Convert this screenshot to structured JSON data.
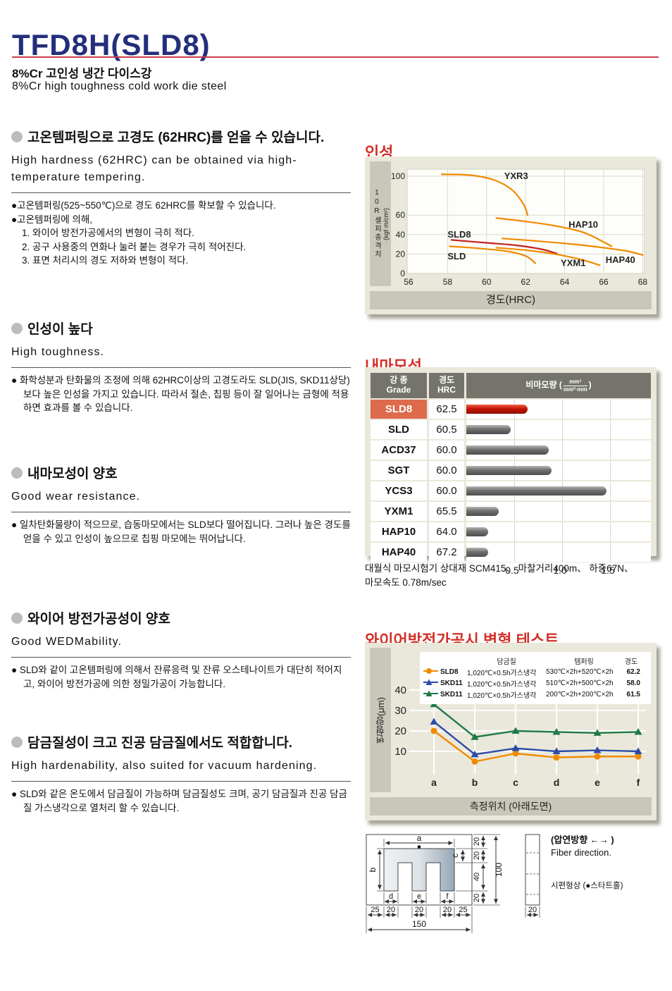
{
  "page": {
    "title": "TFD8H(SLD8)",
    "subtitle_kr": "8%Cr 고인성 냉간 다이스강",
    "subtitle_en": "8%Cr high toughness cold work die steel",
    "accent_navy": "#232f7b",
    "accent_red": "#d22f27"
  },
  "sections": [
    {
      "heading_kr": "고온템퍼링으로 고경도 (62HRC)를 얻을 수 있습니다.",
      "heading_en": "High hardness (62HRC) can be obtained via high-temperature tempering.",
      "body": [
        "●고온템퍼링(525~550℃)으로 경도 62HRC를 확보할 수 있습니다.",
        "●고온템퍼링에 의해,",
        "1. 와이어 방전가공에서의 변형이 극히 적다.",
        "2. 공구 사용중의 연화나 눌러 붙는 경우가 극히 적어진다.",
        "3. 표면 처리시의 경도 저하와 변형이 적다."
      ]
    },
    {
      "heading_kr": "인성이 높다",
      "heading_en": "High toughness.",
      "body": [
        "● 화학성분과 탄화물의 조정에 의해 62HRC이상의 고경도라도 SLD(JIS, SKD11상당)보다 높은 인성을 가지고 있습니다. 따라서 절손, 칩핑 등이 잘 일어나는 금형에 적용하면 효과를 볼 수 있습니다."
      ]
    },
    {
      "heading_kr": "내마모성이 양호",
      "heading_en": "Good wear resistance.",
      "body": [
        "● 일차탄화물량이 적으므로, 습동마모에서는 SLD보다 떨어집니다. 그러나 높은 경도를 얻을 수 있고 인성이 높으므로 칩핑 마모에는 뛰어납니다."
      ]
    },
    {
      "heading_kr": "와이어 방전가공성이 양호",
      "heading_en": "Good WEDMability.",
      "body": [
        "● SLD와 같이 고온템퍼링에 의해서 잔류응력 및 잔류 오스테나이트가 대단히 적어지고, 와이어 방전가공에 의한 정밀가공이 가능합니다."
      ]
    },
    {
      "heading_kr": "담금질성이 크고 진공 담금질에서도 적합합니다.",
      "heading_en": "High hardenability, also suited for vacuum hardening.",
      "body": [
        "● SLD와 같은 온도에서 담금질이 가능하며 담금질성도 크며, 공기 담금질과 진공 담금질 가스냉각으로 열처리 할 수 있습니다."
      ]
    }
  ],
  "chart_data": [
    {
      "type": "line",
      "title": "인성",
      "xlabel": "경도(HRC)",
      "ylabel_main": "10R셸피충격치",
      "ylabel_unit": "(kgf·m/cm²)",
      "xlim": [
        56,
        68.3
      ],
      "ylim": [
        0,
        105
      ],
      "xticks": [
        56,
        58,
        60,
        62,
        64,
        66,
        68
      ],
      "yticks": [
        0,
        20,
        40,
        60,
        100
      ],
      "series": [
        {
          "name": "YXR3",
          "color": "#f08a00",
          "points": [
            [
              57.7,
              102
            ],
            [
              59.2,
              101
            ],
            [
              60.4,
              96
            ],
            [
              61.3,
              86
            ],
            [
              61.9,
              71
            ],
            [
              62.1,
              60
            ]
          ],
          "label_at": [
            60.9,
            97
          ]
        },
        {
          "name": "HAP10",
          "color": "#f08a00",
          "points": [
            [
              60.5,
              57
            ],
            [
              62,
              53.5
            ],
            [
              63.5,
              49
            ],
            [
              65,
              42
            ],
            [
              66.4,
              28
            ]
          ],
          "label_at": [
            64.2,
            47
          ]
        },
        {
          "name": "HAP40",
          "color": "#f08a00",
          "points": [
            [
              60.8,
              36
            ],
            [
              62.5,
              33.5
            ],
            [
              64.5,
              30
            ],
            [
              66,
              26.5
            ],
            [
              67.2,
              23
            ],
            [
              68,
              19
            ]
          ],
          "label_at": [
            66.1,
            11
          ]
        },
        {
          "name": "SLD8",
          "color": "#c42320",
          "points": [
            [
              58.2,
              34.5
            ],
            [
              60,
              31.5
            ],
            [
              61.5,
              29
            ],
            [
              62.8,
              25
            ],
            [
              63.6,
              20.5
            ]
          ],
          "label_at": [
            58,
            37
          ]
        },
        {
          "name": "SLD",
          "color": "#f08a00",
          "points": [
            [
              58.1,
              28
            ],
            [
              59.5,
              26
            ],
            [
              61,
              23
            ],
            [
              62,
              18
            ],
            [
              62.5,
              10.5
            ]
          ],
          "label_at": [
            58,
            14.5
          ]
        },
        {
          "name": "YXM1",
          "color": "#f08a00",
          "points": [
            [
              60.5,
              26.5
            ],
            [
              62,
              24
            ],
            [
              63.5,
              20
            ],
            [
              64.8,
              14.5
            ],
            [
              65.8,
              8.5
            ]
          ],
          "label_at": [
            63.8,
            7.5
          ]
        }
      ]
    },
    {
      "type": "bar",
      "title": "내마모성",
      "col_grade_kr": "강 종",
      "col_grade_en": "Grade",
      "col_hrc_kr": "경도",
      "col_hrc_en": "HRC",
      "col_wear": "비마모량",
      "col_wear_unit_num": "mm³",
      "col_wear_unit_den": "mm²·mm",
      "xticks": [
        0.5,
        1.0,
        1.5
      ],
      "xlim": [
        0,
        2.0
      ],
      "rows": [
        {
          "grade": "SLD8",
          "hrc": "62.5",
          "value": 0.64,
          "highlight": true
        },
        {
          "grade": "SLD",
          "hrc": "60.5",
          "value": 0.46,
          "highlight": false
        },
        {
          "grade": "ACD37",
          "hrc": "60.0",
          "value": 0.86,
          "highlight": false
        },
        {
          "grade": "SGT",
          "hrc": "60.0",
          "value": 0.89,
          "highlight": false
        },
        {
          "grade": "YCS3",
          "hrc": "60.0",
          "value": 1.46,
          "highlight": false
        },
        {
          "grade": "YXM1",
          "hrc": "65.5",
          "value": 0.34,
          "highlight": false
        },
        {
          "grade": "HAP10",
          "hrc": "64.0",
          "value": 0.23,
          "highlight": false
        },
        {
          "grade": "HAP40",
          "hrc": "67.2",
          "value": 0.23,
          "highlight": false
        }
      ],
      "caption_line1": "대월식 마모시험기 상대재 SCM415、 마찰거리400m、 하중67N、",
      "caption_line2": "마모속도 0.78m/sec"
    },
    {
      "type": "line",
      "title": "와이어방전가공시 변형 테스트",
      "xlabel": "측정위치 (아래도면)",
      "ylabel": "변형량(μm)",
      "categories": [
        "a",
        "b",
        "c",
        "d",
        "e",
        "f"
      ],
      "yticks": [
        10,
        20,
        30,
        40
      ],
      "ylim": [
        0,
        46
      ],
      "legend_headers": [
        "담금질",
        "템퍼링",
        "경도"
      ],
      "series": [
        {
          "name": "SLD8",
          "marker": "circle",
          "color": "#f08a00",
          "quench": "1,020℃×0.5h가스냉각",
          "temper": "530℃×2h+520℃×2h",
          "hardness": "62.2",
          "values": [
            20,
            5,
            9,
            7,
            7.5,
            7.5
          ]
        },
        {
          "name": "SKD11",
          "marker": "triangle",
          "color": "#2b4ba8",
          "quench": "1,020℃×0.5h가스냉각",
          "temper": "510℃×2h+500℃×2h",
          "hardness": "58.0",
          "values": [
            24.5,
            8.5,
            11.5,
            10,
            10.5,
            10
          ]
        },
        {
          "name": "SKD11",
          "marker": "triangle",
          "color": "#1f7a45",
          "quench": "1,020℃×0.5h가스냉각",
          "temper": "200℃×2h+200℃×2h",
          "hardness": "61.5",
          "values": [
            33,
            17,
            20,
            19.5,
            19,
            19.5
          ]
        }
      ]
    }
  ],
  "diagram": {
    "dim_a": "a",
    "dim_b": "b",
    "dim_c": "c",
    "dim_d": "d",
    "dim_e": "e",
    "dim_f": "f",
    "right_dims": [
      "20",
      "20",
      "40",
      "20"
    ],
    "right_total": "100",
    "bottom_dims": [
      "25",
      "20",
      "20",
      "20",
      "25"
    ],
    "bottom_total": "150",
    "side_dim": "20",
    "rolling_kr": "(압연방향 ←→ )",
    "rolling_en": "Fiber direction.",
    "specimen_note": "시편형상 (●스타트홀)"
  }
}
